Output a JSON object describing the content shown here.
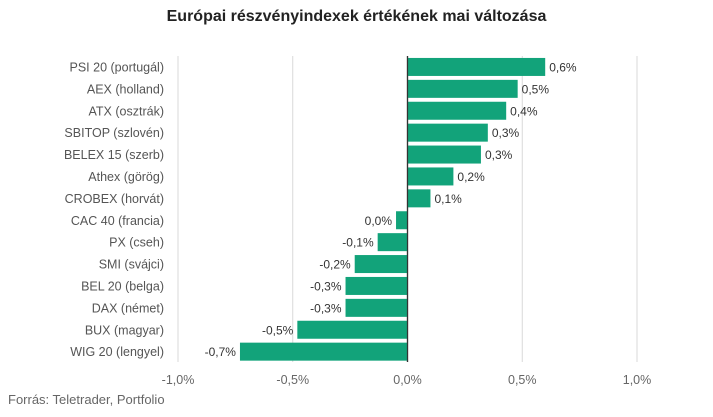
{
  "title": "Európai részvényindexek értékének mai változása",
  "source": "Forrás: Teletrader, Portfolio",
  "colors": {
    "bar": "#12a37a",
    "grid": "#d9d9d9",
    "axis": "#333333"
  },
  "chart_data": {
    "type": "bar",
    "orientation": "horizontal",
    "categories": [
      "PSI 20 (portugál)",
      "AEX (holland)",
      "ATX (osztrák)",
      "SBITOP (szlovén)",
      "BELEX 15 (szerb)",
      "Athex (görög)",
      "CROBEX (horvát)",
      "CAC 40 (francia)",
      "PX (cseh)",
      "SMI (svájci)",
      "BEL 20 (belga)",
      "DAX (német)",
      "BUX (magyar)",
      "WIG 20 (lengyel)"
    ],
    "values": [
      0.6,
      0.48,
      0.43,
      0.35,
      0.32,
      0.2,
      0.1,
      -0.05,
      -0.13,
      -0.23,
      -0.27,
      -0.27,
      -0.48,
      -0.73
    ],
    "value_labels": [
      "0,6%",
      "0,5%",
      "0,4%",
      "0,3%",
      "0,3%",
      "0,2%",
      "0,1%",
      "0,0%",
      "-0,1%",
      "-0,2%",
      "-0,3%",
      "-0,3%",
      "-0,5%",
      "-0,7%"
    ],
    "xlim": [
      -1.0,
      1.0
    ],
    "xticks": [
      -1.0,
      -0.5,
      0.0,
      0.5,
      1.0
    ],
    "xtick_labels": [
      "-1,0%",
      "-0,5%",
      "0,0%",
      "0,5%",
      "1,0%"
    ],
    "grid": true
  }
}
